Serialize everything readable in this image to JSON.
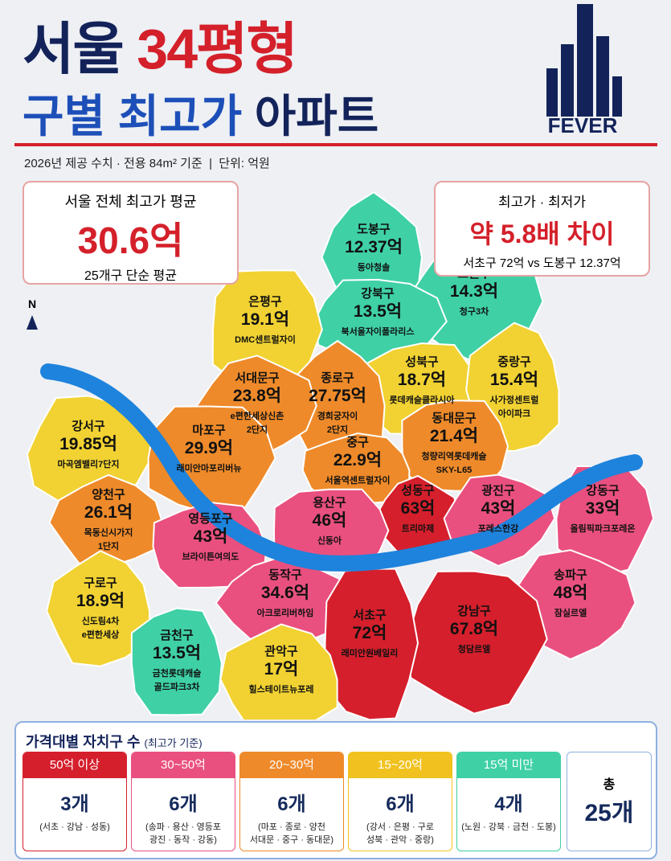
{
  "header": {
    "title_a": "서울",
    "title_b": "34평형",
    "subtitle_a": "구별 최고가",
    "subtitle_b": "아파트",
    "logo": "FEVER",
    "note": "2026년 제공 수치 · 전용 84m² 기준  |  단위: 억원"
  },
  "avg_box": {
    "label": "서울 전체 최고가 평균",
    "value": "30.6억",
    "note": "25개구 단순 평균"
  },
  "ratio_box": {
    "label": "최고가 · 최저가",
    "value": "약 5.8배 차이",
    "note": "서초구 72억 vs 도봉구 12.37억"
  },
  "compass": "N",
  "districts": [
    {
      "name": "도봉구",
      "price": "12.37억",
      "apt": [
        "동아청솔"
      ]
    },
    {
      "name": "노원구",
      "price": "14.3억",
      "apt": [
        "청구3차"
      ]
    },
    {
      "name": "강북구",
      "price": "13.5억",
      "apt": [
        "북서울자이폴라리스"
      ]
    },
    {
      "name": "은평구",
      "price": "19.1억",
      "apt": [
        "DMC센트럴자이"
      ]
    },
    {
      "name": "성북구",
      "price": "18.7억",
      "apt": [
        "롯데캐슬클라시아"
      ]
    },
    {
      "name": "중랑구",
      "price": "15.4억",
      "apt": [
        "사가정센트럴",
        "아이파크"
      ]
    },
    {
      "name": "종로구",
      "price": "27.75억",
      "apt": [
        "경희궁자이",
        "2단지"
      ]
    },
    {
      "name": "서대문구",
      "price": "23.8억",
      "apt": [
        "e편한세상신촌",
        "2단지"
      ]
    },
    {
      "name": "강서구",
      "price": "19.85억",
      "apt": [
        "마곡엠밸리7단지"
      ]
    },
    {
      "name": "마포구",
      "price": "29.9억",
      "apt": [
        "래미안마포리버뉴"
      ]
    },
    {
      "name": "동대문구",
      "price": "21.4억",
      "apt": [
        "청량리역롯데캐슬",
        "SKY-L65"
      ]
    },
    {
      "name": "중구",
      "price": "22.9억",
      "apt": [
        "서울역센트럴자이"
      ]
    },
    {
      "name": "양천구",
      "price": "26.1억",
      "apt": [
        "목동신시가지",
        "1단지"
      ]
    },
    {
      "name": "성동구",
      "price": "63억",
      "apt": [
        "트리마제"
      ]
    },
    {
      "name": "광진구",
      "price": "43억",
      "apt": [
        "포레스한강"
      ]
    },
    {
      "name": "강동구",
      "price": "33억",
      "apt": [
        "올림픽파크포레온"
      ]
    },
    {
      "name": "용산구",
      "price": "46억",
      "apt": [
        "신동아"
      ]
    },
    {
      "name": "영등포구",
      "price": "43억",
      "apt": [
        "브라이튼여의도"
      ]
    },
    {
      "name": "구로구",
      "price": "18.9억",
      "apt": [
        "신도림4차",
        "e편한세상"
      ]
    },
    {
      "name": "동작구",
      "price": "34.6억",
      "apt": [
        "아크로리버하임"
      ]
    },
    {
      "name": "송파구",
      "price": "48억",
      "apt": [
        "잠실르엘"
      ]
    },
    {
      "name": "강남구",
      "price": "67.8억",
      "apt": [
        "청담르엘"
      ]
    },
    {
      "name": "서초구",
      "price": "72억",
      "apt": [
        "래미안원베일리"
      ]
    },
    {
      "name": "금천구",
      "price": "13.5억",
      "apt": [
        "금천롯데캐슬",
        "골드파크3차"
      ]
    },
    {
      "name": "관악구",
      "price": "17억",
      "apt": [
        "힐스테이트뉴포레"
      ]
    }
  ],
  "legend": {
    "title": "가격대별 자치구 수",
    "title_note": "(최고가 기준)",
    "tiers": [
      {
        "label": "50억 이상",
        "count": "3개",
        "members": "(서초 · 강남 · 성동)"
      },
      {
        "label": "30~50억",
        "count": "6개",
        "members": "(송파 · 용산 · 영등포\n광진 · 동작 · 강동)"
      },
      {
        "label": "20~30억",
        "count": "6개",
        "members": "(마포 · 종로 · 양천\n서대문 · 중구 · 동대문)"
      },
      {
        "label": "15~20억",
        "count": "6개",
        "members": "(강서 · 은평 · 구로\n성북 · 관악 · 중랑)"
      },
      {
        "label": "15억 미만",
        "count": "4개",
        "members": "(노원 · 강북 · 금천 · 도봉)"
      }
    ],
    "total_label": "총",
    "total": "25개"
  }
}
